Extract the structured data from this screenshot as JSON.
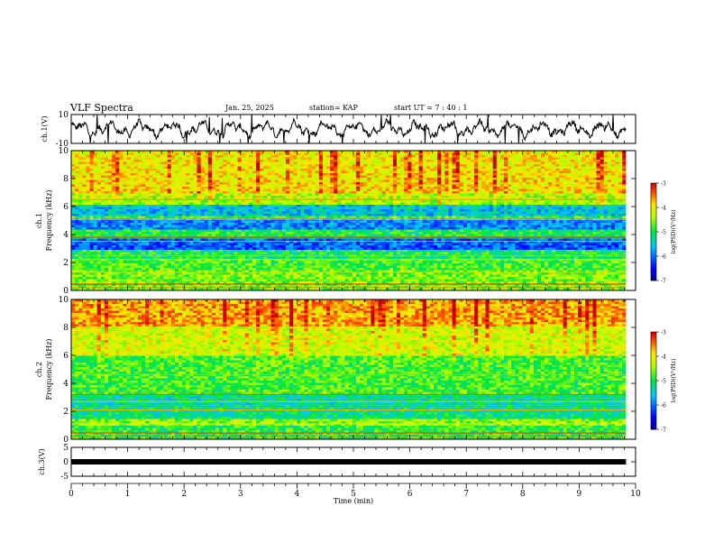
{
  "header": {
    "title": "VLF Spectra",
    "date": "Jan. 25, 2025",
    "station": "station= KAP",
    "start_ut": "start UT =  7 : 40 : 1"
  },
  "chart_data": [
    {
      "type": "line",
      "id": "ch1-waveform",
      "ylabel": "ch.1(V)",
      "ylim": [
        -10,
        10
      ],
      "yticks": [
        {
          "value": 10,
          "label": "10"
        },
        {
          "value": -10,
          "label": "-10"
        }
      ],
      "xlim": [
        0,
        10
      ],
      "data_end_min": 9.83,
      "color": "#000000"
    },
    {
      "type": "heatmap",
      "id": "ch1-spectrogram",
      "xlabel": "",
      "ylabel": "Frequency (kHz)",
      "channel_label": "ch.1",
      "ylim": [
        0,
        10
      ],
      "yticks": [
        {
          "value": 0,
          "label": "0"
        },
        {
          "value": 2,
          "label": "2"
        },
        {
          "value": 4,
          "label": "4"
        },
        {
          "value": 6,
          "label": "6"
        },
        {
          "value": 8,
          "label": "8"
        },
        {
          "value": 10,
          "label": "10"
        }
      ],
      "xlim": [
        0,
        10
      ],
      "data_end_min": 9.83,
      "colorbar": {
        "label": "log(PSD)(V²/Hz)",
        "range": [
          -7,
          -3
        ],
        "ticks": [
          {
            "value": -3,
            "label": "-3"
          },
          {
            "value": -4,
            "label": "-4"
          },
          {
            "value": -5,
            "label": "-5"
          },
          {
            "value": -6,
            "label": "-6"
          },
          {
            "value": -7,
            "label": "-7"
          }
        ]
      }
    },
    {
      "type": "heatmap",
      "id": "ch2-spectrogram",
      "xlabel": "",
      "ylabel": "Frequency (kHz)",
      "channel_label": "ch.2",
      "ylim": [
        0,
        10
      ],
      "yticks": [
        {
          "value": 0,
          "label": "0"
        },
        {
          "value": 2,
          "label": "2"
        },
        {
          "value": 4,
          "label": "4"
        },
        {
          "value": 6,
          "label": "6"
        },
        {
          "value": 8,
          "label": "8"
        },
        {
          "value": 10,
          "label": "10"
        }
      ],
      "xlim": [
        0,
        10
      ],
      "data_end_min": 9.83,
      "colorbar": {
        "label": "log(PSD)(V²/Hz)",
        "range": [
          -7,
          -3
        ],
        "ticks": [
          {
            "value": -3,
            "label": "-3"
          },
          {
            "value": -4,
            "label": "-4"
          },
          {
            "value": -5,
            "label": "-5"
          },
          {
            "value": -6,
            "label": "-6"
          },
          {
            "value": -7,
            "label": "-7"
          }
        ]
      }
    },
    {
      "type": "line",
      "id": "ch3-waveform",
      "ylabel": "ch.3(V)",
      "ylim": [
        -5,
        5
      ],
      "yticks": [
        {
          "value": 5,
          "label": "5"
        },
        {
          "value": 0,
          "label": "0"
        },
        {
          "value": -5,
          "label": "-5"
        }
      ],
      "xlim": [
        0,
        10
      ],
      "xlabel": "Time (min)",
      "xticks": [
        {
          "value": 0,
          "label": "0"
        },
        {
          "value": 1,
          "label": "1"
        },
        {
          "value": 2,
          "label": "2"
        },
        {
          "value": 3,
          "label": "3"
        },
        {
          "value": 4,
          "label": "4"
        },
        {
          "value": 5,
          "label": "5"
        },
        {
          "value": 6,
          "label": "6"
        },
        {
          "value": 7,
          "label": "7"
        },
        {
          "value": 8,
          "label": "8"
        },
        {
          "value": 9,
          "label": "9"
        },
        {
          "value": 10,
          "label": "10"
        }
      ],
      "constant_value": 0,
      "data_end_min": 9.83,
      "color": "#000000"
    }
  ]
}
